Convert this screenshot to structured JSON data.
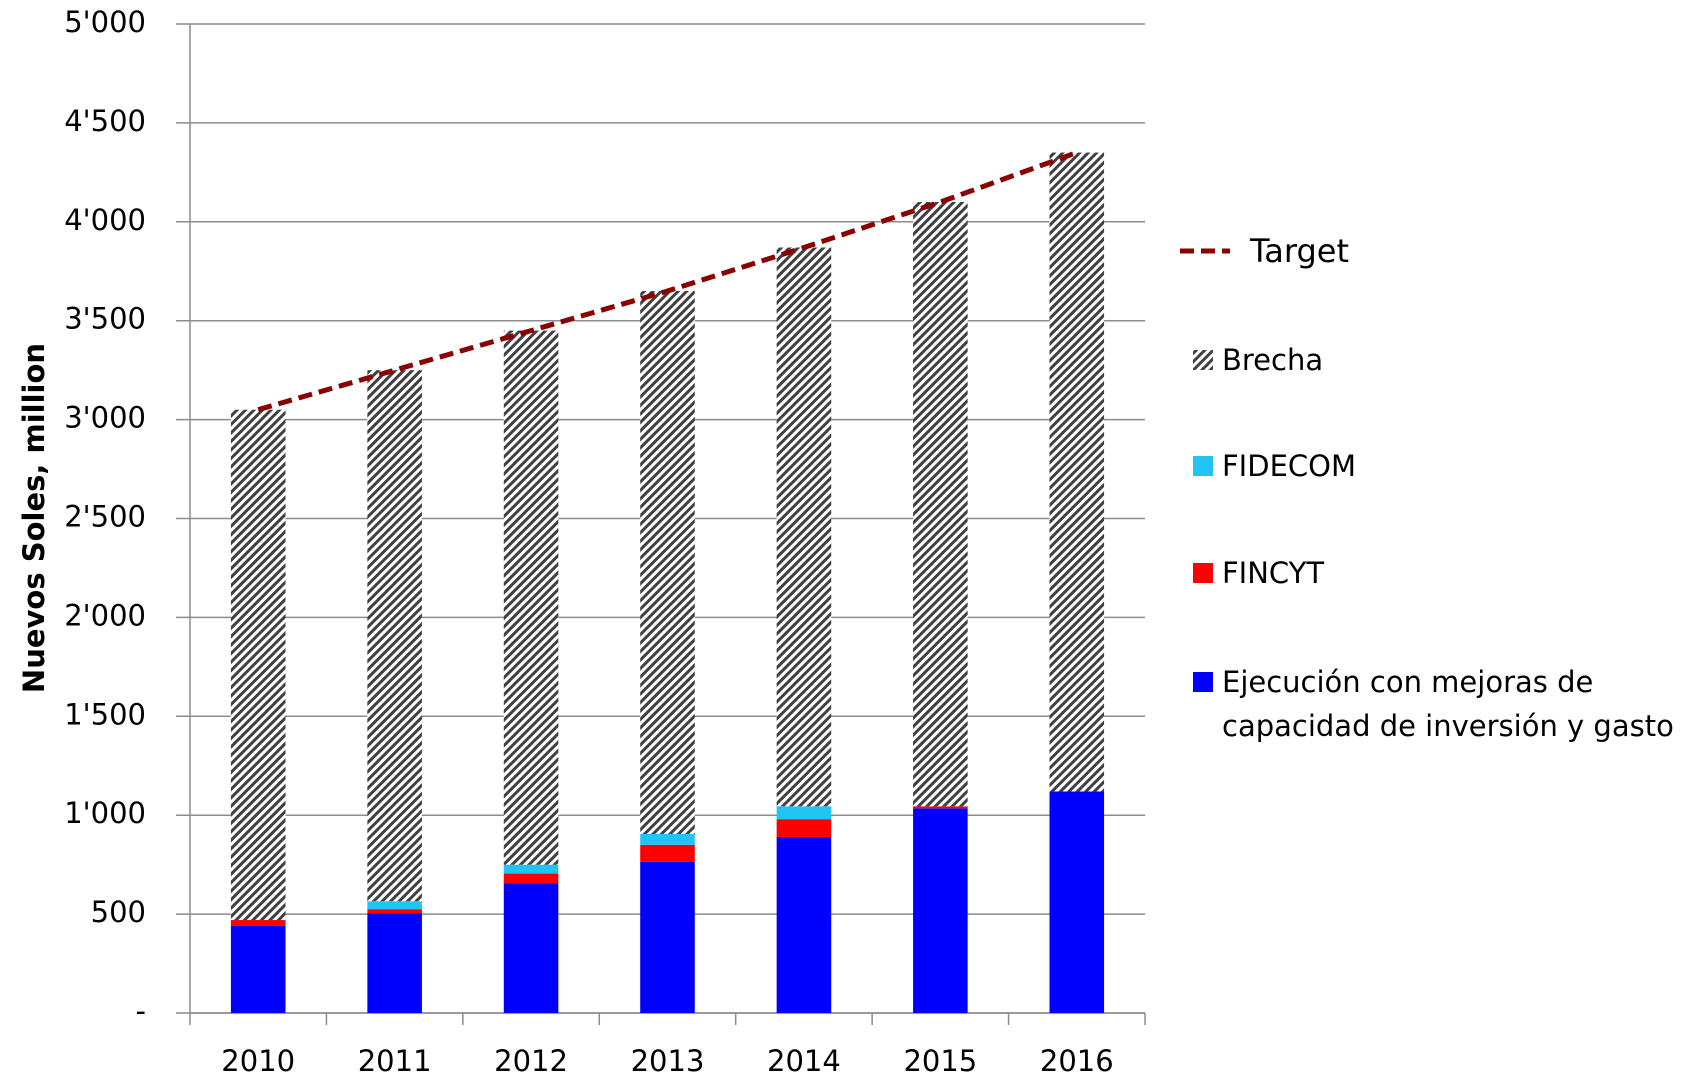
{
  "chart_data": {
    "type": "bar",
    "stacked": true,
    "y_label": "Nuevos Soles, million",
    "categories": [
      "2010",
      "2011",
      "2012",
      "2013",
      "2014",
      "2015",
      "2016"
    ],
    "series": [
      {
        "name": "Ejecución con mejoras de capacidad de inversión y gasto",
        "color": "#0000ff",
        "values": [
          440,
          505,
          655,
          765,
          890,
          1035,
          1120
        ]
      },
      {
        "name": "FINCYT",
        "color": "#ff0000",
        "values": [
          30,
          20,
          50,
          85,
          90,
          10,
          0
        ]
      },
      {
        "name": "FIDECOM",
        "color": "#22c4f4",
        "values": [
          0,
          40,
          45,
          55,
          65,
          0,
          0
        ]
      },
      {
        "name": "Brecha",
        "color": "#404040",
        "pattern": "hatch",
        "values": [
          2580,
          2685,
          2700,
          2745,
          2825,
          3055,
          3230
        ]
      },
      {
        "name": "Target",
        "type": "line",
        "dashed": true,
        "color": "#8b0000",
        "values": [
          3050,
          3250,
          3450,
          3650,
          3870,
          4100,
          4350
        ]
      }
    ],
    "legend_order": [
      4,
      3,
      2,
      1,
      0
    ],
    "ylim": [
      0,
      5000
    ],
    "yticks": [
      {
        "value": 0,
        "label": "-"
      },
      500,
      {
        "value": 1000,
        "label": "1'000"
      },
      {
        "value": 1500,
        "label": "1'500"
      },
      {
        "value": 2000,
        "label": "2'000"
      },
      {
        "value": 2500,
        "label": "2'500"
      },
      {
        "value": 3000,
        "label": "3'000"
      },
      {
        "value": 3500,
        "label": "3'500"
      },
      {
        "value": 4000,
        "label": "4'000"
      },
      {
        "value": 4500,
        "label": "4'500"
      },
      {
        "value": 5000,
        "label": "5'000"
      }
    ],
    "grid": true
  }
}
